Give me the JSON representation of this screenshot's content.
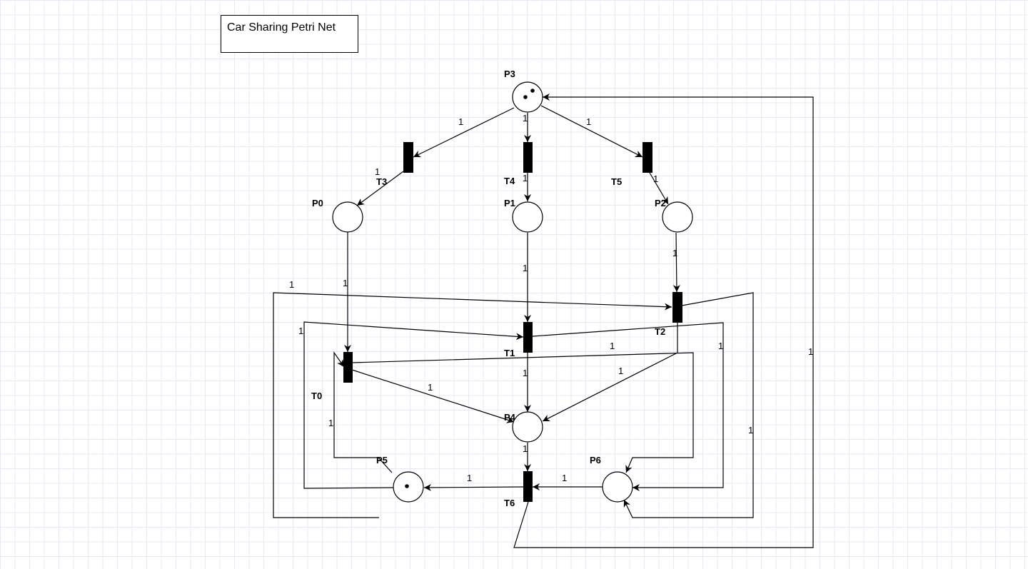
{
  "title": "Car Sharing Petri Net",
  "colors": {
    "grid": "#e8e8f4",
    "ink": "#000000"
  },
  "places": {
    "P0": {
      "label": "P0",
      "tokens": 0
    },
    "P1": {
      "label": "P1",
      "tokens": 0
    },
    "P2": {
      "label": "P2",
      "tokens": 0
    },
    "P3": {
      "label": "P3",
      "tokens": 2
    },
    "P4": {
      "label": "P4",
      "tokens": 0
    },
    "P5": {
      "label": "P5",
      "tokens": 1
    },
    "P6": {
      "label": "P6",
      "tokens": 0
    }
  },
  "transitions": {
    "T0": {
      "label": "T0"
    },
    "T1": {
      "label": "T1"
    },
    "T2": {
      "label": "T2"
    },
    "T3": {
      "label": "T3"
    },
    "T4": {
      "label": "T4"
    },
    "T5": {
      "label": "T5"
    },
    "T6": {
      "label": "T6"
    }
  },
  "arcs": [
    {
      "id": "p3-t3",
      "from": "P3",
      "to": "T3",
      "weight": "1"
    },
    {
      "id": "p3-t4",
      "from": "P3",
      "to": "T4",
      "weight": "1"
    },
    {
      "id": "p3-t5",
      "from": "P3",
      "to": "T5",
      "weight": "1"
    },
    {
      "id": "t3-p0",
      "from": "T3",
      "to": "P0",
      "weight": "1"
    },
    {
      "id": "t4-p1",
      "from": "T4",
      "to": "P1",
      "weight": "1"
    },
    {
      "id": "t5-p2",
      "from": "T5",
      "to": "P2",
      "weight": "1"
    },
    {
      "id": "p0-t0",
      "from": "P0",
      "to": "T0",
      "weight": "1"
    },
    {
      "id": "p1-t1",
      "from": "P1",
      "to": "T1",
      "weight": "1"
    },
    {
      "id": "p2-t2",
      "from": "P2",
      "to": "T2",
      "weight": "1"
    },
    {
      "id": "p5-t2",
      "from": "P5",
      "to": "T2",
      "weight": "1"
    },
    {
      "id": "p5-t1",
      "from": "P5",
      "to": "T1",
      "weight": "1"
    },
    {
      "id": "p5-t0",
      "from": "P5",
      "to": "T0",
      "weight": "1"
    },
    {
      "id": "t0-p6",
      "from": "T0",
      "to": "P6",
      "weight": "1"
    },
    {
      "id": "t2-p4",
      "from": "T2",
      "to": "P4",
      "weight": "1"
    },
    {
      "id": "t1-p6",
      "from": "T1",
      "to": "P6",
      "weight": "1"
    },
    {
      "id": "t2-p6",
      "from": "T2",
      "to": "P6",
      "weight": "1"
    },
    {
      "id": "t0-p4",
      "from": "T0",
      "to": "P4",
      "weight": "1"
    },
    {
      "id": "t1-p4",
      "from": "T1",
      "to": "P4",
      "weight": "1"
    },
    {
      "id": "p4-t6",
      "from": "P4",
      "to": "T6",
      "weight": "1"
    },
    {
      "id": "p6-t6",
      "from": "P6",
      "to": "T6",
      "weight": "1"
    },
    {
      "id": "t6-p5",
      "from": "T6",
      "to": "P5",
      "weight": "1"
    },
    {
      "id": "t6-p3",
      "from": "T6",
      "to": "P3",
      "weight": "1"
    }
  ]
}
